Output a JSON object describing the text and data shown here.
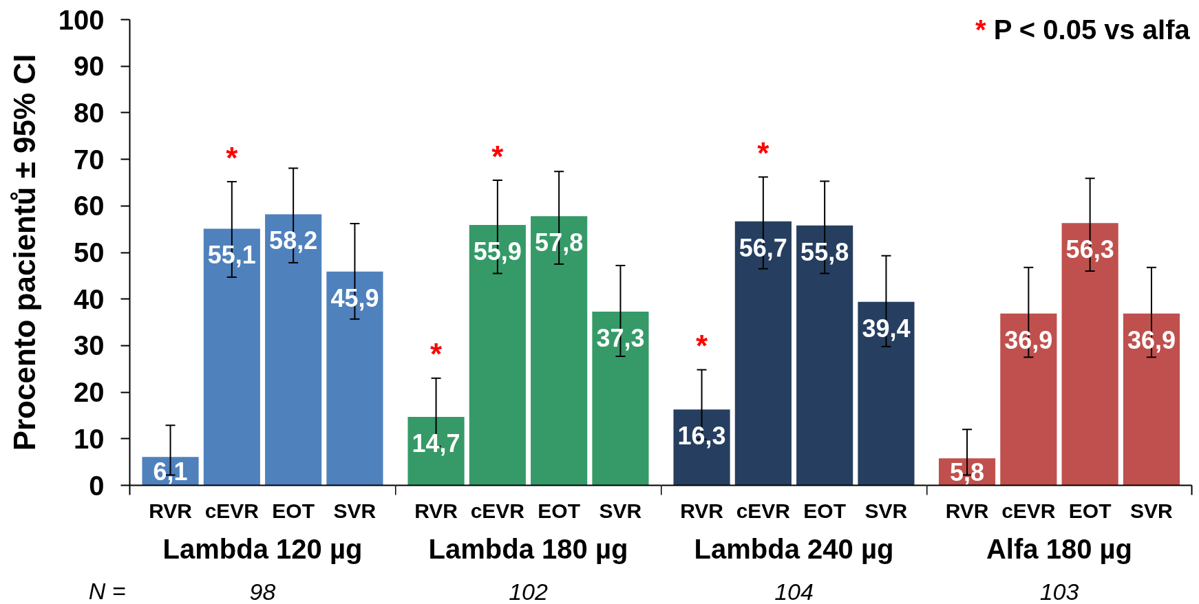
{
  "chart_data": [
    {
      "type": "bar",
      "ylabel": "Procento pacientů ± 95% CI",
      "xlabel": "Lambda 120 µg",
      "categories": [
        "RVR",
        "cEVR",
        "EOT",
        "SVR"
      ],
      "values": [
        6.1,
        55.1,
        58.2,
        45.9
      ],
      "colors": [
        "#4f81bd",
        "#4f81bd",
        "#4f81bd",
        "#4f81bd"
      ],
      "errors": [
        [
          2.2,
          12.9
        ],
        [
          44.7,
          65.2
        ],
        [
          47.8,
          68.1
        ],
        [
          35.7,
          56.2
        ]
      ],
      "value_labels": [
        "6,1",
        "55,1",
        "58,2",
        "45,9"
      ],
      "ylim": [
        0,
        100
      ],
      "yticks": [
        0,
        10,
        20,
        30,
        40,
        50,
        60,
        70,
        80,
        90,
        100
      ],
      "annotations": [
        "N =",
        "98",
        {
          "text": "*",
          "x": "cEVR",
          "y": 55.1
        }
      ]
    },
    {
      "type": "bar",
      "xlabel": "Lambda 180 µg",
      "categories": [
        "RVR",
        "cEVR",
        "EOT",
        "SVR"
      ],
      "values": [
        14.7,
        55.9,
        57.8,
        37.3
      ],
      "colors": [
        "#359a68",
        "#359a68",
        "#359a68",
        "#359a68"
      ],
      "errors": [
        [
          8.4,
          23.0
        ],
        [
          45.5,
          65.5
        ],
        [
          47.5,
          67.4
        ],
        [
          27.7,
          47.2
        ]
      ],
      "value_labels": [
        "14,7",
        "55,9",
        "57,8",
        "37,3"
      ],
      "ylim": [
        0,
        100
      ],
      "tick_labels": "x",
      "annotations": [
        "102",
        {
          "text": "*",
          "x": "RVR",
          "y": 14.7
        },
        {
          "text": "*",
          "x": "cEVR",
          "y": 55.9
        }
      ]
    },
    {
      "type": "bar",
      "xlabel": "Lambda 240 µg",
      "categories": [
        "RVR",
        "cEVR",
        "EOT",
        "SVR"
      ],
      "values": [
        16.3,
        56.7,
        55.8,
        39.4
      ],
      "colors": [
        "#263f60",
        "#263f60",
        "#263f60",
        "#263f60"
      ],
      "errors": [
        [
          9.9,
          24.8
        ],
        [
          46.5,
          66.2
        ],
        [
          45.5,
          65.3
        ],
        [
          29.8,
          49.3
        ]
      ],
      "value_labels": [
        "16,3",
        "56,7",
        "55,8",
        "39,4"
      ],
      "ylim": [
        0,
        100
      ],
      "tick_labels": "x",
      "annotations": [
        "104",
        {
          "text": "*",
          "x": "RVR",
          "y": 16.3
        },
        {
          "text": "*",
          "x": "cEVR",
          "y": 56.7
        }
      ]
    },
    {
      "type": "bar",
      "xlabel": "Alfa 180 µg",
      "categories": [
        "RVR",
        "cEVR",
        "EOT",
        "SVR"
      ],
      "values": [
        5.8,
        36.9,
        56.3,
        36.9
      ],
      "colors": [
        "#c0504d",
        "#c0504d",
        "#c0504d",
        "#c0504d"
      ],
      "errors": [
        [
          2.2,
          12.0
        ],
        [
          27.5,
          46.8
        ],
        [
          46.0,
          65.9
        ],
        [
          27.5,
          46.8
        ]
      ],
      "value_labels": [
        "5,8",
        "36,9",
        "56,3",
        "36,9"
      ],
      "ylim": [
        0,
        100
      ],
      "tick_labels": "x",
      "annotations": [
        "* P < 0.05 vs alfa",
        "103"
      ]
    }
  ]
}
